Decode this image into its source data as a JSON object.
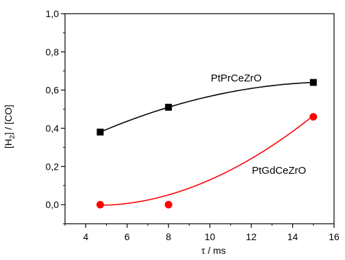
{
  "chart_data": {
    "type": "scatter",
    "xlabel": "τ / ms",
    "ylabel": {
      "prefix": "[H",
      "sub": "2",
      "suffix": "] / [CO]"
    },
    "xlim": [
      3,
      16
    ],
    "ylim": [
      -0.1,
      1.0
    ],
    "xticks": [
      4,
      6,
      8,
      10,
      12,
      14,
      16
    ],
    "xtick_labels": [
      "4",
      "6",
      "8",
      "10",
      "12",
      "14",
      "16"
    ],
    "yticks": [
      0.0,
      0.2,
      0.4,
      0.6,
      0.8,
      1.0
    ],
    "ytick_labels": [
      "0,0",
      "0,2",
      "0,4",
      "0,6",
      "0,8",
      "1,0"
    ],
    "grid": false,
    "series": [
      {
        "name": "PtPrCeZrO",
        "color": "#000000",
        "marker": "square",
        "x": [
          4.7,
          8.0,
          15.0
        ],
        "y": [
          0.38,
          0.51,
          0.64
        ],
        "fit": "smooth-line"
      },
      {
        "name": "PtGdCeZrO",
        "color": "#ff0000",
        "marker": "circle",
        "x": [
          4.7,
          8.0,
          15.0
        ],
        "y": [
          0.0,
          0.0,
          0.46
        ],
        "fit": "smooth-line"
      }
    ]
  }
}
